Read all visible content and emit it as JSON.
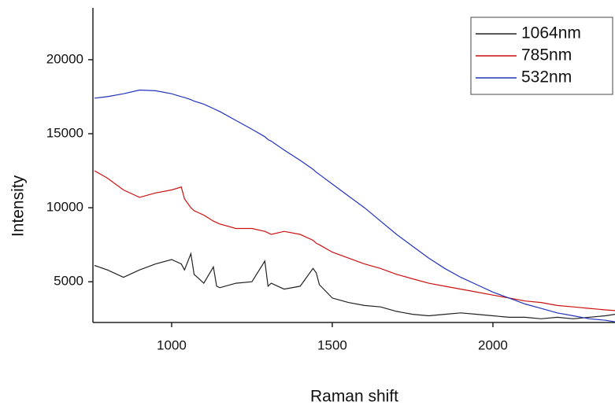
{
  "chart_data": {
    "type": "line",
    "x_label": "Raman shift",
    "y_label": "Intensity",
    "x": [
      760,
      800,
      850,
      900,
      950,
      1000,
      1030,
      1040,
      1060,
      1070,
      1100,
      1130,
      1140,
      1150,
      1200,
      1250,
      1290,
      1300,
      1310,
      1350,
      1400,
      1440,
      1450,
      1460,
      1500,
      1550,
      1600,
      1650,
      1700,
      1750,
      1800,
      1850,
      1900,
      1950,
      2000,
      2050,
      2100,
      2150,
      2200,
      2250,
      2300,
      2350,
      2380
    ],
    "series": [
      {
        "name": "1064nm",
        "color": "#222222",
        "values": [
          6100,
          5800,
          5300,
          5800,
          6200,
          6500,
          6200,
          5800,
          6900,
          5500,
          4900,
          6000,
          4700,
          4600,
          4900,
          5000,
          6400,
          4700,
          4900,
          4500,
          4700,
          5900,
          5600,
          4800,
          3900,
          3600,
          3400,
          3300,
          3000,
          2800,
          2700,
          2800,
          2900,
          2800,
          2700,
          2600,
          2600,
          2500,
          2600,
          2500,
          2600,
          2700,
          2800
        ]
      },
      {
        "name": "785nm",
        "color": "#cc1111",
        "values": [
          12500,
          12000,
          11200,
          10700,
          11000,
          11200,
          11400,
          10600,
          10000,
          9800,
          9500,
          9100,
          9000,
          8900,
          8600,
          8600,
          8400,
          8300,
          8200,
          8400,
          8200,
          7800,
          7600,
          7500,
          7000,
          6600,
          6200,
          5900,
          5500,
          5200,
          4900,
          4700,
          4500,
          4300,
          4100,
          3900,
          3700,
          3600,
          3400,
          3300,
          3200,
          3100,
          3050
        ]
      },
      {
        "name": "532nm",
        "color": "#2233bb",
        "values": [
          17400,
          17500,
          17700,
          17950,
          17900,
          17700,
          17500,
          17450,
          17300,
          17200,
          17000,
          16700,
          16600,
          16500,
          15900,
          15300,
          14800,
          14600,
          14500,
          13900,
          13200,
          12600,
          12400,
          12250,
          11600,
          10800,
          10000,
          9100,
          8200,
          7400,
          6600,
          5900,
          5300,
          4800,
          4300,
          3900,
          3500,
          3200,
          2900,
          2700,
          2500,
          2400,
          2300
        ]
      }
    ],
    "xlim": [
      755,
      2380
    ],
    "ylim": [
      2250,
      23500
    ],
    "xticks": [
      1000,
      1500,
      2000
    ],
    "yticks": [
      5000,
      10000,
      15000,
      20000
    ],
    "grid": false,
    "legend": "upper right"
  }
}
